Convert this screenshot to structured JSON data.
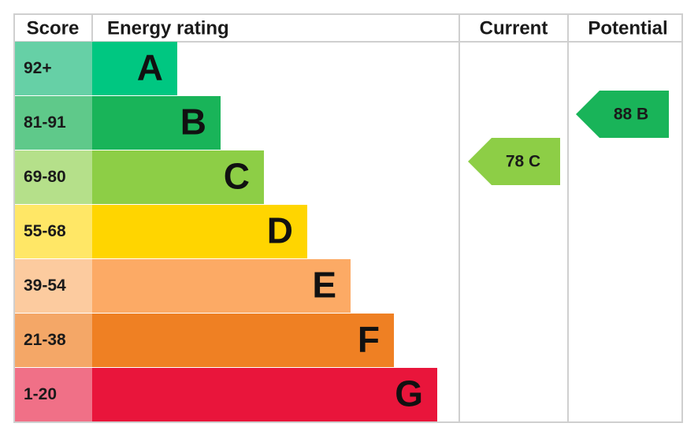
{
  "header": {
    "score": "Score",
    "energy_rating": "Energy rating",
    "current": "Current",
    "potential": "Potential"
  },
  "bands": [
    {
      "score": "92+",
      "letter": "A"
    },
    {
      "score": "81-91",
      "letter": "B"
    },
    {
      "score": "69-80",
      "letter": "C"
    },
    {
      "score": "55-68",
      "letter": "D"
    },
    {
      "score": "39-54",
      "letter": "E"
    },
    {
      "score": "21-38",
      "letter": "F"
    },
    {
      "score": "1-20",
      "letter": "G"
    }
  ],
  "current": "78 C",
  "potential": "88 B"
}
